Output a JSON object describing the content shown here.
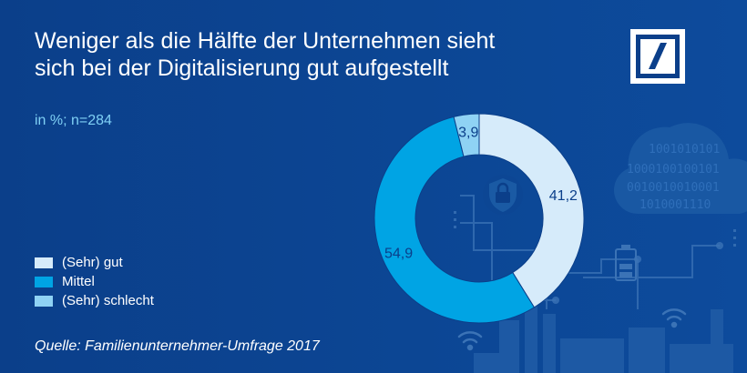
{
  "title_lines": [
    "Weniger als die Hälfte der Unternehmen sieht",
    "sich bei der Digitalisierung gut aufgestellt"
  ],
  "subtitle": "in %; n=284",
  "source": "Quelle: Familienunternehmer-Umfrage 2017",
  "binary_cloud": [
    "1001010101",
    "1000100100101",
    "0010010010001",
    "1010001110"
  ],
  "chart_data": {
    "type": "pie",
    "title": "Weniger als die Hälfte der Unternehmen sieht sich bei der Digitalisierung gut aufgestellt",
    "unit": "in %; n=284",
    "series": [
      {
        "name": "(Sehr) gut",
        "value": 41.2,
        "label": "41,2",
        "color": "#d6ebfa"
      },
      {
        "name": "Mittel",
        "value": 54.9,
        "label": "54,9",
        "color": "#00a4e4"
      },
      {
        "name": "(Sehr) schlecht",
        "value": 3.9,
        "label": "3,9",
        "color": "#8fd2f4"
      }
    ],
    "legend": "bottom-left"
  },
  "colors": {
    "background": "#0b3f8a",
    "title": "#ffffff",
    "subtitle": "#7fd0f5"
  }
}
